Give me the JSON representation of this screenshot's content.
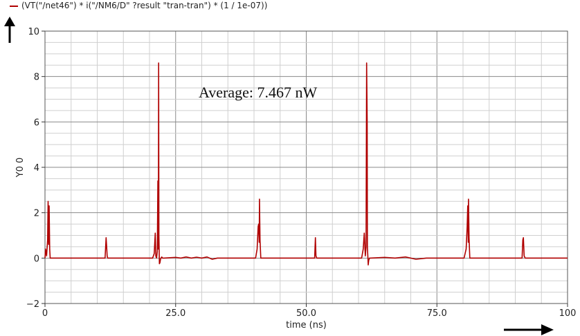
{
  "legend": {
    "label": "(VT(\"/net46\") * i(\"/NM6/D\" ?result \"tran-tran\") * (1 / 1e-07))"
  },
  "annotation": {
    "text": "Average: 7.467 nW"
  },
  "chart_data": {
    "type": "line",
    "xlabel": "time (ns)",
    "ylabel": "Y0 0",
    "xlim": [
      0,
      100
    ],
    "ylim": [
      -2,
      10
    ],
    "x_ticks": [
      0,
      25,
      50,
      75,
      100
    ],
    "x_tick_labels": [
      "0",
      "25.0",
      "50.0",
      "75.0",
      "100"
    ],
    "y_ticks": [
      -2,
      0,
      2,
      4,
      6,
      8,
      10
    ],
    "y_tick_labels": [
      "−2",
      "0",
      "2",
      "4",
      "6",
      "8",
      "10"
    ],
    "grid": true,
    "series": [
      {
        "name": "(VT(\"/net46\") * i(\"/NM6/D\" ?result \"tran-tran\") * (1 / 1e-07))",
        "color": "#b00000",
        "x": [
          0.0,
          0.1,
          0.3,
          0.5,
          0.6,
          0.7,
          0.8,
          0.9,
          1.0,
          1.1,
          1.2,
          1.3,
          1.4,
          1.6,
          11.5,
          11.7,
          11.8,
          11.9,
          12.0,
          12.2,
          20.6,
          20.9,
          21.1,
          21.2,
          21.35,
          21.5,
          21.6,
          21.7,
          21.75,
          21.8,
          21.9,
          22.0,
          22.1,
          22.2,
          22.35,
          22.5,
          22.8,
          25.0,
          26.0,
          27.0,
          28.0,
          29.0,
          30.0,
          31.0,
          32.0,
          33.0,
          40.3,
          40.6,
          40.8,
          40.9,
          41.0,
          41.05,
          41.15,
          41.3,
          41.5,
          51.6,
          51.75,
          51.85,
          52.0,
          60.6,
          60.9,
          61.1,
          61.3,
          61.45,
          61.55,
          61.65,
          61.7,
          61.8,
          61.85,
          61.95,
          62.1,
          62.3,
          65.0,
          67.0,
          69.0,
          71.0,
          73.0,
          80.2,
          80.6,
          80.8,
          80.9,
          81.0,
          81.05,
          81.15,
          81.3,
          81.5,
          91.3,
          91.45,
          91.55,
          91.7,
          91.9,
          100.0
        ],
        "y": [
          0.0,
          0.4,
          0.1,
          0.8,
          2.5,
          0.6,
          2.3,
          0.4,
          0.0,
          0.0,
          0.0,
          0.0,
          0.0,
          0.0,
          0.0,
          0.9,
          0.5,
          0.1,
          0.0,
          0.0,
          0.0,
          0.2,
          1.1,
          0.1,
          0.0,
          0.3,
          3.4,
          0.4,
          8.6,
          1.0,
          -0.25,
          -0.2,
          -0.05,
          0.0,
          0.05,
          0.0,
          0.0,
          0.03,
          0.0,
          0.05,
          0.0,
          0.04,
          0.0,
          0.05,
          -0.05,
          0.0,
          0.0,
          0.4,
          1.4,
          1.5,
          0.7,
          2.6,
          0.8,
          0.0,
          0.0,
          0.0,
          0.9,
          0.1,
          0.0,
          0.0,
          0.4,
          1.1,
          0.1,
          0.5,
          8.6,
          6.0,
          0.5,
          0.0,
          -0.3,
          -0.1,
          0.0,
          0.0,
          0.03,
          0.0,
          0.05,
          -0.05,
          0.0,
          0.0,
          0.4,
          1.4,
          2.3,
          0.7,
          2.6,
          0.9,
          0.0,
          0.0,
          0.0,
          0.8,
          0.9,
          0.1,
          0.0,
          0.0
        ]
      }
    ]
  }
}
